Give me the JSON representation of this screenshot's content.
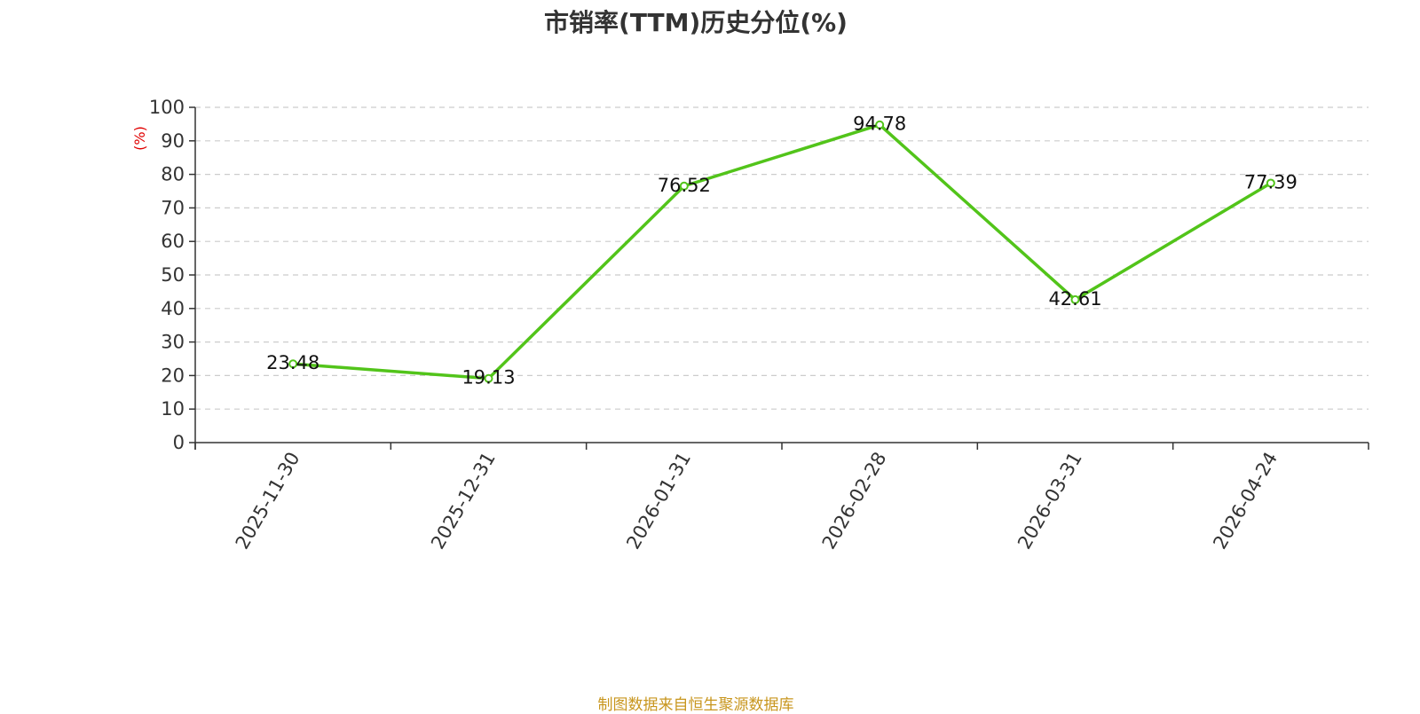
{
  "chart_data": {
    "type": "line",
    "title": "市销率(TTM)历史分位(%)",
    "ylabel": "(%)",
    "xlabel": "",
    "categories": [
      "2025-11-30",
      "2025-12-31",
      "2026-01-31",
      "2026-02-28",
      "2026-03-31",
      "2026-04-24"
    ],
    "series": [
      {
        "values": [
          23.48,
          19.13,
          76.52,
          94.78,
          42.61,
          77.39
        ],
        "color": "#52c41a"
      }
    ],
    "ylim": [
      0,
      100
    ],
    "yticks": [
      0,
      10,
      20,
      30,
      40,
      50,
      60,
      70,
      80,
      90,
      100
    ],
    "grid": true,
    "legend": "none"
  },
  "footer": "制图数据来自恒生聚源数据库",
  "colors": {
    "line": "#52c41a",
    "ylabel": "#e00000",
    "footer": "#c8961e",
    "grid": "#cccccc"
  }
}
